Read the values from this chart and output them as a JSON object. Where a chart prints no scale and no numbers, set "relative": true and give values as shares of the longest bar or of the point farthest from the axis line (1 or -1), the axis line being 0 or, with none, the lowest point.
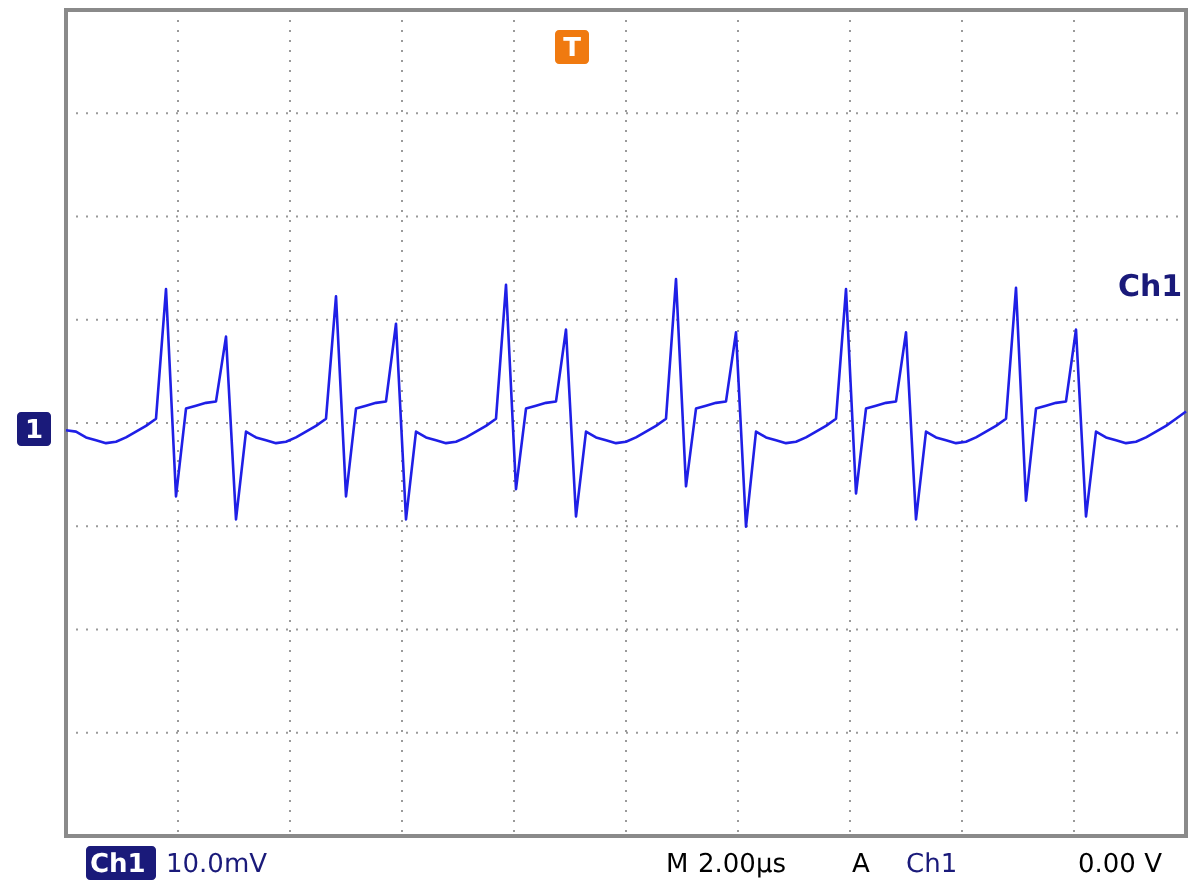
{
  "chart_data": {
    "type": "line",
    "relative": true,
    "grid": true,
    "categories": [
      null,
      null,
      null,
      null,
      null,
      null,
      null,
      null,
      null,
      null,
      null,
      null,
      null,
      null,
      null,
      null,
      null,
      null,
      null,
      null,
      null,
      null,
      null,
      null,
      null,
      null,
      null,
      null,
      null,
      null,
      null,
      null,
      null,
      null,
      null,
      null,
      null,
      null,
      null,
      null,
      null,
      null,
      null,
      null,
      null,
      null,
      null,
      null,
      null,
      null,
      null,
      null,
      null,
      null,
      null,
      null,
      null,
      null,
      null,
      null,
      null,
      null,
      null,
      null,
      null,
      null,
      null,
      null,
      null,
      null,
      null,
      null,
      null,
      null,
      null,
      null,
      null,
      null,
      null,
      null,
      null,
      null,
      null,
      null,
      null,
      null,
      null,
      null,
      null,
      null,
      null,
      null,
      null,
      null,
      null,
      null,
      null,
      null,
      null,
      null,
      null,
      null,
      null,
      null,
      null,
      null,
      null,
      null,
      null,
      null,
      null,
      null,
      null
    ],
    "series": [
      {
        "color": "#1f1fe6",
        "values": [
          -0.05,
          -0.06,
          -0.1,
          -0.12,
          -0.14,
          -0.13,
          -0.1,
          -0.06,
          -0.02,
          0.03,
          0.93,
          -0.51,
          0.1,
          0.12,
          0.14,
          0.15,
          0.6,
          -0.67,
          -0.06,
          -0.1,
          -0.12,
          -0.14,
          -0.13,
          -0.1,
          -0.06,
          -0.02,
          0.03,
          0.88,
          -0.51,
          0.1,
          0.12,
          0.14,
          0.15,
          0.69,
          -0.67,
          -0.06,
          -0.1,
          -0.12,
          -0.14,
          -0.13,
          -0.1,
          -0.06,
          -0.02,
          0.03,
          0.96,
          -0.46,
          0.1,
          0.12,
          0.14,
          0.15,
          0.65,
          -0.65,
          -0.06,
          -0.1,
          -0.12,
          -0.14,
          -0.13,
          -0.1,
          -0.06,
          -0.02,
          0.03,
          1.0,
          -0.44,
          0.1,
          0.12,
          0.14,
          0.15,
          0.63,
          -0.72,
          -0.06,
          -0.1,
          -0.12,
          -0.14,
          -0.13,
          -0.1,
          -0.06,
          -0.02,
          0.03,
          0.93,
          -0.49,
          0.1,
          0.12,
          0.14,
          0.15,
          0.63,
          -0.67,
          -0.06,
          -0.1,
          -0.12,
          -0.14,
          -0.13,
          -0.1,
          -0.06,
          -0.02,
          0.03,
          0.94,
          -0.54,
          0.1,
          0.12,
          0.14,
          0.15,
          0.65,
          -0.65,
          -0.06,
          -0.1,
          -0.12,
          -0.14,
          -0.13,
          -0.1,
          -0.06,
          -0.02,
          0.03,
          0.08
        ]
      }
    ],
    "annotations": [
      "Ch1",
      "T",
      "1",
      "Ch1",
      "10.0mV",
      "M",
      "2.00µs",
      "A",
      "Ch1",
      "0.00 V"
    ]
  }
}
